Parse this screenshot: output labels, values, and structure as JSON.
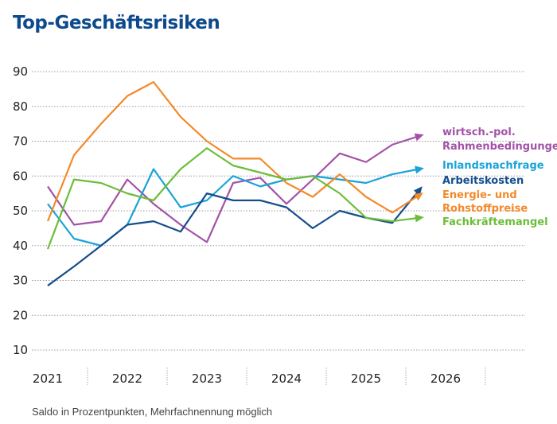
{
  "chart_data": {
    "type": "line",
    "title": "Top-Geschäftsrisiken",
    "note": "Saldo in Prozentpunkten, Mehrfachnennung möglich",
    "xlabel": "",
    "ylabel": "",
    "ylim": [
      10,
      90
    ],
    "yticks": [
      90,
      80,
      70,
      60,
      50,
      40,
      30,
      20,
      10
    ],
    "xlim": [
      2021,
      2027
    ],
    "xtick_labels": [
      "2021",
      "2022",
      "2023",
      "2024",
      "2025",
      "2026"
    ],
    "grid": "horizontal dotted",
    "legend_placement": "right (end-of-line labels)",
    "x": [
      2021.5,
      2021.83,
      2022.17,
      2022.5,
      2022.83,
      2023.17,
      2023.5,
      2023.83,
      2024.17,
      2024.5,
      2024.83,
      2025.17,
      2025.5,
      2025.83,
      2026.17
    ],
    "series": [
      {
        "name": "wirtsch.-pol. Rahmenbedingungen",
        "label_lines": [
          "wirtsch.-pol.",
          "Rahmenbedingungen"
        ],
        "color": "#a352a8",
        "values": [
          57,
          46,
          47,
          59,
          52,
          46,
          41,
          58,
          59.5,
          52,
          59,
          66.5,
          64,
          69,
          71.5
        ]
      },
      {
        "name": "Inlandsnachfrage",
        "label_lines": [
          "Inlandsnachfrage"
        ],
        "color": "#1aa3d8",
        "values": [
          52,
          42,
          40,
          46,
          62,
          51,
          53,
          60,
          57,
          59,
          60,
          59,
          58,
          60.5,
          62
        ]
      },
      {
        "name": "Arbeitskosten",
        "label_lines": [
          "Arbeitskosten"
        ],
        "color": "#144e8c",
        "values": [
          28.5,
          34,
          40,
          46,
          47,
          44,
          55,
          53,
          53,
          51,
          45,
          50,
          48,
          46.5,
          56
        ]
      },
      {
        "name": "Energie- und Rohstoffpreise",
        "label_lines": [
          "Energie- und",
          "Rohstoffpreise"
        ],
        "color": "#f28a2a",
        "values": [
          47,
          66,
          75,
          83,
          87,
          77,
          70,
          65,
          65,
          58,
          54,
          60.5,
          54,
          49.5,
          54.5
        ]
      },
      {
        "name": "Fachkräftemangel",
        "label_lines": [
          "Fachkräftemangel"
        ],
        "color": "#6cbd3a",
        "values": [
          39,
          59,
          58,
          55,
          53,
          62,
          68,
          63,
          61,
          59,
          60,
          55,
          48,
          47,
          48
        ]
      }
    ]
  }
}
